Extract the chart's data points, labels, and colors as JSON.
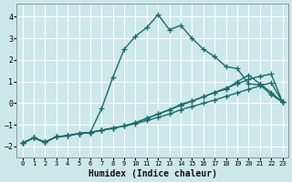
{
  "xlabel": "Humidex (Indice chaleur)",
  "xlim": [
    -0.5,
    23.5
  ],
  "ylim": [
    -2.5,
    4.6
  ],
  "xticks": [
    0,
    1,
    2,
    3,
    4,
    5,
    6,
    7,
    8,
    9,
    10,
    11,
    12,
    13,
    14,
    15,
    16,
    17,
    18,
    19,
    20,
    21,
    22,
    23
  ],
  "yticks": [
    -2,
    -1,
    0,
    1,
    2,
    3,
    4
  ],
  "bg_color": "#cde8e8",
  "grid_color": "#ffffff",
  "line_color": "#1a6b6b",
  "lines": [
    {
      "x": [
        0,
        1,
        2,
        3,
        4,
        5,
        6,
        7,
        8,
        9,
        10,
        11,
        12,
        13,
        14,
        15,
        16,
        17,
        18,
        19,
        20,
        21,
        22,
        23
      ],
      "y": [
        -1.85,
        -1.6,
        -1.8,
        -1.55,
        -1.5,
        -1.4,
        -1.35,
        -1.25,
        -1.15,
        -1.05,
        -0.95,
        -0.8,
        -0.65,
        -0.5,
        -0.3,
        -0.15,
        0.0,
        0.15,
        0.32,
        0.48,
        0.65,
        0.8,
        0.95,
        0.05
      ]
    },
    {
      "x": [
        0,
        1,
        2,
        3,
        4,
        5,
        6,
        7,
        8,
        9,
        10,
        11,
        12,
        13,
        14,
        15,
        16,
        17,
        18,
        19,
        20,
        21,
        22,
        23
      ],
      "y": [
        -1.85,
        -1.6,
        -1.8,
        -1.55,
        -1.5,
        -1.4,
        -1.35,
        -1.25,
        -1.15,
        -1.05,
        -0.9,
        -0.7,
        -0.5,
        -0.3,
        -0.1,
        0.1,
        0.3,
        0.5,
        0.7,
        0.9,
        1.1,
        1.25,
        1.35,
        0.05
      ]
    },
    {
      "x": [
        0,
        1,
        2,
        3,
        4,
        5,
        6,
        7,
        8,
        9,
        10,
        11,
        12,
        13,
        14,
        15,
        16,
        17,
        18,
        19,
        20,
        21,
        22,
        23
      ],
      "y": [
        -1.85,
        -1.6,
        -1.8,
        -1.55,
        -1.5,
        -1.4,
        -1.35,
        -0.25,
        1.2,
        2.5,
        3.1,
        3.5,
        4.1,
        3.4,
        3.6,
        3.0,
        2.5,
        2.15,
        1.7,
        1.6,
        0.9,
        0.85,
        0.4,
        0.05
      ]
    },
    {
      "x": [
        0,
        1,
        2,
        3,
        4,
        5,
        6,
        7,
        8,
        9,
        10,
        11,
        12,
        13,
        14,
        15,
        16,
        17,
        18,
        19,
        20,
        21,
        22,
        23
      ],
      "y": [
        -1.85,
        -1.6,
        -1.8,
        -1.55,
        -1.5,
        -1.4,
        -1.35,
        -1.25,
        -1.15,
        -1.05,
        -0.9,
        -0.7,
        -0.5,
        -0.3,
        -0.05,
        0.1,
        0.3,
        0.5,
        0.65,
        1.0,
        1.3,
        0.9,
        0.5,
        0.05
      ]
    }
  ],
  "marker": "+",
  "markersize": 4,
  "linewidth": 1.0,
  "xlabel_fontsize": 7,
  "tick_fontsize": 5.5
}
